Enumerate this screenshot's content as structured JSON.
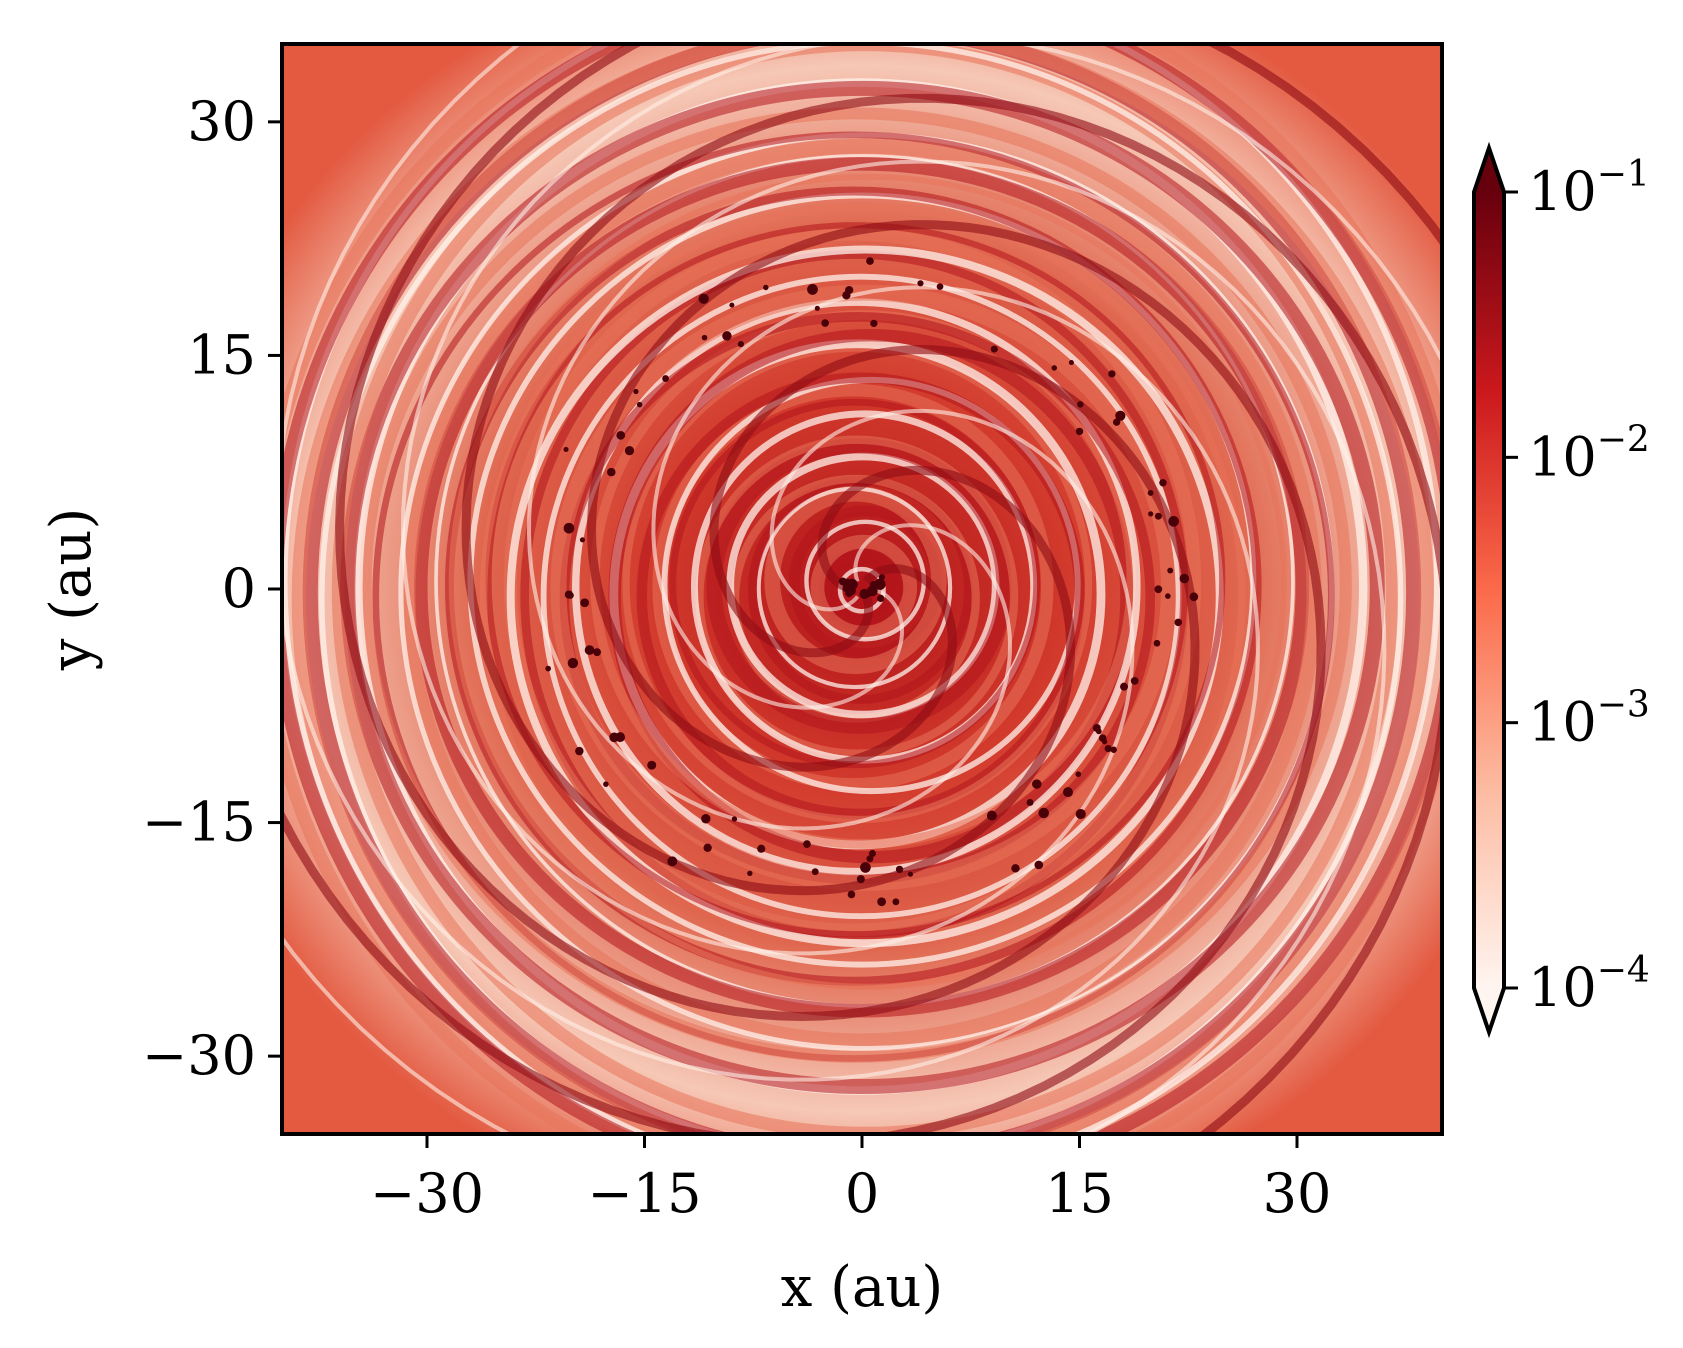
{
  "chart_data": {
    "type": "heatmap",
    "title": "",
    "xlabel": "x (au)",
    "ylabel": "y (au)",
    "xlim": [
      -40,
      40
    ],
    "ylim": [
      -35,
      35
    ],
    "xticks": [
      -30,
      -15,
      0,
      15,
      30
    ],
    "yticks": [
      -30,
      -15,
      0,
      15,
      30
    ],
    "xtick_labels": [
      "−30",
      "−15",
      "0",
      "15",
      "30"
    ],
    "ytick_labels": [
      "−30",
      "−15",
      "0",
      "15",
      "30"
    ],
    "colorbar": {
      "scale": "log",
      "range": [
        0.0001,
        0.1
      ],
      "extend": "both",
      "colormap": "Reds",
      "ticks": [
        0.0001,
        0.001,
        0.01,
        0.1
      ],
      "tick_labels": [
        {
          "base": "10",
          "exp": "−4"
        },
        {
          "base": "10",
          "exp": "−3"
        },
        {
          "base": "10",
          "exp": "−2"
        },
        {
          "base": "10",
          "exp": "−1"
        }
      ],
      "colors": [
        "#fff5f0",
        "#fcbba1",
        "#fb6a4a",
        "#cb181d",
        "#67000d"
      ]
    },
    "description_free": true
  }
}
